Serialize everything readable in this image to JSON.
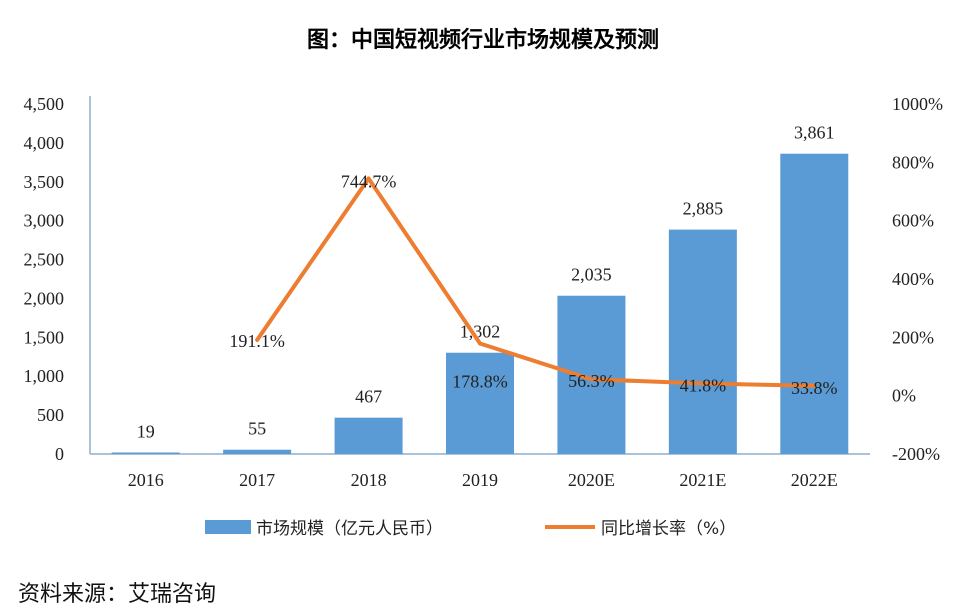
{
  "chart_data": {
    "type": "bar+line",
    "title": "图：中国短视频行业市场规模及预测",
    "categories": [
      "2016",
      "2017",
      "2018",
      "2019",
      "2020E",
      "2021E",
      "2022E"
    ],
    "series": [
      {
        "name": "市场规模（亿元人民币）",
        "type": "bar",
        "axis": "left",
        "color": "#5B9BD5",
        "values": [
          19,
          55,
          467,
          1302,
          2035,
          2885,
          3861
        ],
        "labels": [
          "19",
          "55",
          "467",
          "1,302",
          "2,035",
          "2,885",
          "3,861"
        ]
      },
      {
        "name": "同比增长率（%）",
        "type": "line",
        "axis": "right",
        "color": "#ED7D31",
        "values": [
          null,
          191.1,
          744.7,
          178.8,
          56.3,
          41.8,
          33.8
        ],
        "labels": [
          "",
          "191.1%",
          "744.7%",
          "178.8%",
          "56.3%",
          "41.8%",
          "33.8%"
        ]
      }
    ],
    "y_left": {
      "range": [
        0,
        4500
      ],
      "ticks": [
        "0",
        "500",
        "1,000",
        "1,500",
        "2,000",
        "2,500",
        "3,000",
        "3,500",
        "4,000",
        "4,500"
      ]
    },
    "y_right": {
      "range": [
        -200,
        1000
      ],
      "ticks": [
        "-200%",
        "0%",
        "200%",
        "400%",
        "600%",
        "800%",
        "1000%"
      ]
    },
    "grid": false,
    "legend": "bottom"
  },
  "source": "资料来源：艾瑞咨询"
}
